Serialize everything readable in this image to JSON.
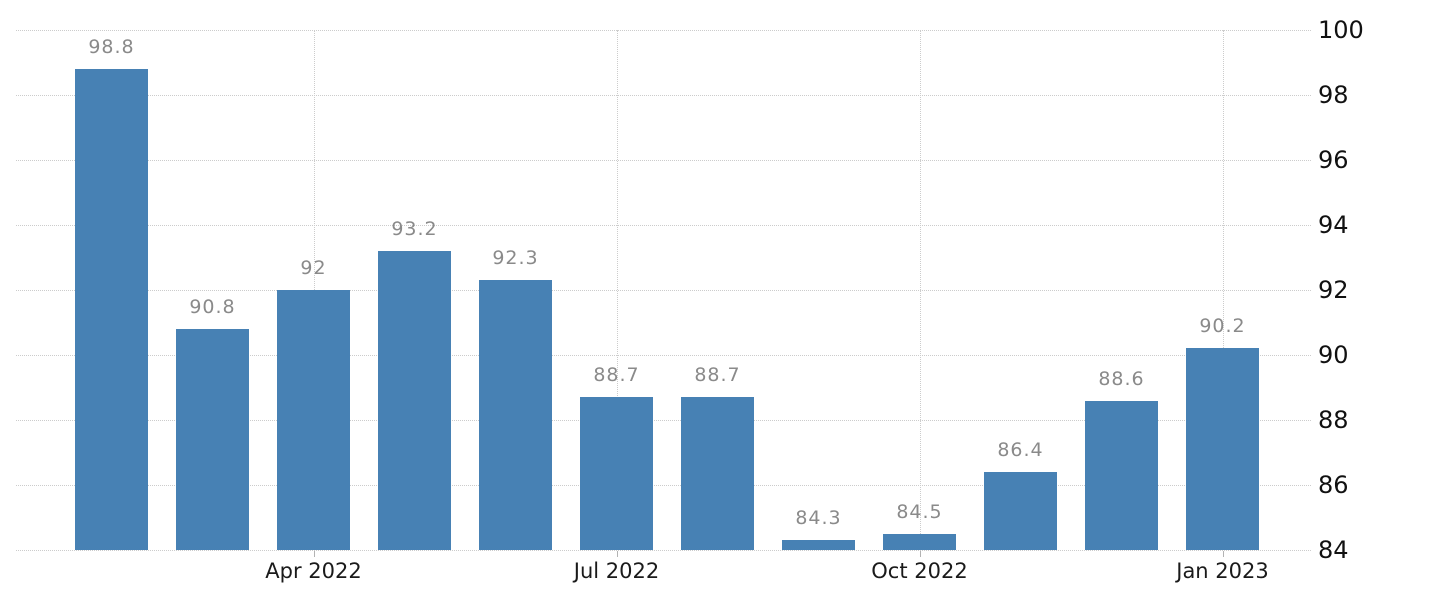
{
  "chart": {
    "background_color": "#ffffff",
    "bar_color": "#4781b4",
    "value_label_color": "#8a8a8a",
    "x_axis_label_color": "#1a1a1a",
    "y_axis_label_color": "#111111",
    "gridline_color": "#cccccc",
    "tick_color": "#b3b3b3"
  },
  "chart_data": {
    "type": "bar",
    "title": "",
    "xlabel": "",
    "ylabel": "",
    "legend_position": "none",
    "grid": "dotted horizontal lines at every 2 units; dotted vertical lines at ticked bars",
    "values": [
      98.8,
      90.8,
      92,
      93.2,
      92.3,
      88.7,
      88.7,
      84.3,
      84.5,
      86.4,
      88.6,
      90.2
    ],
    "bar_labels": [
      "98.8",
      "90.8",
      "92",
      "93.2",
      "92.3",
      "88.7",
      "88.7",
      "84.3",
      "84.5",
      "86.4",
      "88.6",
      "90.2"
    ],
    "x_ticks": [
      {
        "label": "Apr 2022",
        "bar_index": 2
      },
      {
        "label": "Jul 2022",
        "bar_index": 5
      },
      {
        "label": "Oct 2022",
        "bar_index": 8
      },
      {
        "label": "Jan 2023",
        "bar_index": 11
      }
    ],
    "y_ticks": [
      "84",
      "86",
      "88",
      "90",
      "92",
      "94",
      "96",
      "98",
      "100"
    ],
    "ylim": [
      84,
      100
    ],
    "y_axis_side": "right"
  }
}
